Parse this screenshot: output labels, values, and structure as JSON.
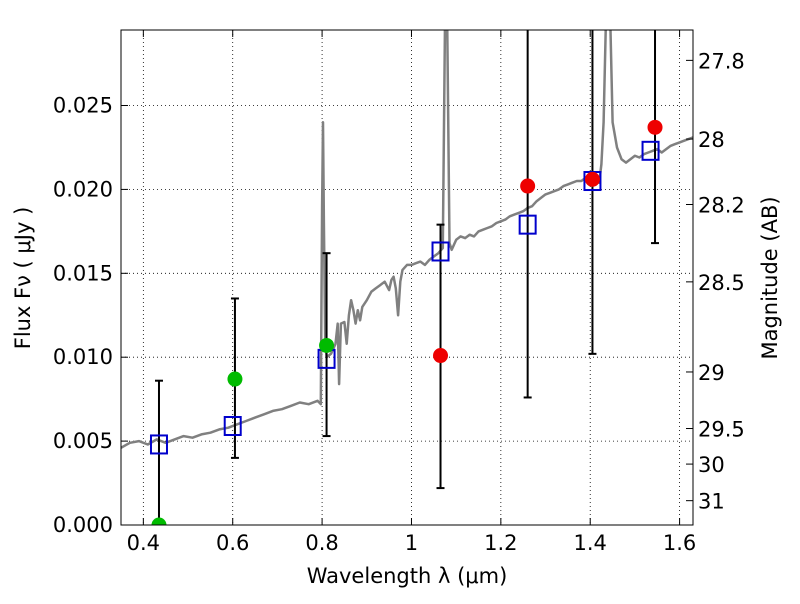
{
  "chart_data": {
    "type": "scatter",
    "title": "",
    "xlabel": "Wavelength  λ (μm)",
    "ylabel": "Flux  Fν  ( μJy )",
    "y2label": "Magnitude (AB)",
    "xlim": [
      0.35,
      1.63
    ],
    "ylim": [
      0.0,
      0.0295
    ],
    "grid": true,
    "x_ticks": [
      {
        "value": 0.4,
        "label": "0.4"
      },
      {
        "value": 0.6,
        "label": "0.6"
      },
      {
        "value": 0.8,
        "label": "0.8"
      },
      {
        "value": 1.0,
        "label": "1"
      },
      {
        "value": 1.2,
        "label": "1.2"
      },
      {
        "value": 1.4,
        "label": "1.4"
      },
      {
        "value": 1.6,
        "label": "1.6"
      }
    ],
    "y_ticks": [
      {
        "value": 0.0,
        "label": "0.000"
      },
      {
        "value": 0.005,
        "label": "0.005"
      },
      {
        "value": 0.01,
        "label": "0.010"
      },
      {
        "value": 0.015,
        "label": "0.015"
      },
      {
        "value": 0.02,
        "label": "0.020"
      },
      {
        "value": 0.025,
        "label": "0.025"
      }
    ],
    "y2_ticks": [
      {
        "flux": 0.02769,
        "label": "27.8"
      },
      {
        "flux": 0.023,
        "label": "28"
      },
      {
        "flux": 0.0191,
        "label": "28.2"
      },
      {
        "flux": 0.01449,
        "label": "28.5"
      },
      {
        "flux": 0.00912,
        "label": "29"
      },
      {
        "flux": 0.00575,
        "label": "29.5"
      },
      {
        "flux": 0.00363,
        "label": "30"
      },
      {
        "flux": 0.00145,
        "label": "31"
      }
    ],
    "colors": {
      "model": "#808080",
      "model_photometry": "#0000cc",
      "detection": "#00bb00",
      "measurement": "#ee0000",
      "errorbar": "#000000"
    },
    "series": [
      {
        "kind": "line",
        "color_key": "model",
        "points": [
          [
            0.35,
            0.0046
          ],
          [
            0.37,
            0.0049
          ],
          [
            0.39,
            0.005
          ],
          [
            0.41,
            0.0048
          ],
          [
            0.43,
            0.0051
          ],
          [
            0.45,
            0.0049
          ],
          [
            0.47,
            0.0051
          ],
          [
            0.49,
            0.0053
          ],
          [
            0.51,
            0.0052
          ],
          [
            0.53,
            0.0054
          ],
          [
            0.55,
            0.0055
          ],
          [
            0.57,
            0.0057
          ],
          [
            0.59,
            0.0058
          ],
          [
            0.61,
            0.006
          ],
          [
            0.63,
            0.0062
          ],
          [
            0.65,
            0.0064
          ],
          [
            0.67,
            0.0066
          ],
          [
            0.69,
            0.0068
          ],
          [
            0.71,
            0.0069
          ],
          [
            0.73,
            0.0071
          ],
          [
            0.75,
            0.0073
          ],
          [
            0.77,
            0.0072
          ],
          [
            0.79,
            0.0074
          ],
          [
            0.797,
            0.0072
          ],
          [
            0.8,
            0.019
          ],
          [
            0.802,
            0.024
          ],
          [
            0.804,
            0.018
          ],
          [
            0.807,
            0.011
          ],
          [
            0.81,
            0.01
          ],
          [
            0.82,
            0.0102
          ],
          [
            0.83,
            0.0108
          ],
          [
            0.835,
            0.012
          ],
          [
            0.838,
            0.0084
          ],
          [
            0.842,
            0.012
          ],
          [
            0.85,
            0.0121
          ],
          [
            0.855,
            0.0108
          ],
          [
            0.86,
            0.0125
          ],
          [
            0.865,
            0.0134
          ],
          [
            0.87,
            0.0128
          ],
          [
            0.875,
            0.012
          ],
          [
            0.88,
            0.0128
          ],
          [
            0.885,
            0.0122
          ],
          [
            0.89,
            0.013
          ],
          [
            0.9,
            0.0134
          ],
          [
            0.91,
            0.0139
          ],
          [
            0.92,
            0.0141
          ],
          [
            0.93,
            0.0143
          ],
          [
            0.94,
            0.0145
          ],
          [
            0.95,
            0.014
          ],
          [
            0.955,
            0.0146
          ],
          [
            0.96,
            0.0148
          ],
          [
            0.965,
            0.0141
          ],
          [
            0.97,
            0.0125
          ],
          [
            0.975,
            0.0145
          ],
          [
            0.98,
            0.0152
          ],
          [
            0.99,
            0.0155
          ],
          [
            1.0,
            0.0155
          ],
          [
            1.01,
            0.0156
          ],
          [
            1.02,
            0.0157
          ],
          [
            1.03,
            0.0155
          ],
          [
            1.04,
            0.0158
          ],
          [
            1.05,
            0.016
          ],
          [
            1.06,
            0.0162
          ],
          [
            1.07,
            0.0165
          ],
          [
            1.075,
            0.03
          ],
          [
            1.08,
            0.03
          ],
          [
            1.085,
            0.0168
          ],
          [
            1.09,
            0.0164
          ],
          [
            1.1,
            0.017
          ],
          [
            1.11,
            0.0172
          ],
          [
            1.12,
            0.0171
          ],
          [
            1.13,
            0.0173
          ],
          [
            1.14,
            0.0172
          ],
          [
            1.15,
            0.0175
          ],
          [
            1.16,
            0.0176
          ],
          [
            1.17,
            0.0177
          ],
          [
            1.18,
            0.0178
          ],
          [
            1.19,
            0.018
          ],
          [
            1.2,
            0.0181
          ],
          [
            1.21,
            0.0182
          ],
          [
            1.22,
            0.0184
          ],
          [
            1.23,
            0.0185
          ],
          [
            1.24,
            0.0186
          ],
          [
            1.25,
            0.0187
          ],
          [
            1.26,
            0.0189
          ],
          [
            1.27,
            0.019
          ],
          [
            1.28,
            0.0193
          ],
          [
            1.29,
            0.0195
          ],
          [
            1.3,
            0.0197
          ],
          [
            1.31,
            0.0198
          ],
          [
            1.32,
            0.0199
          ],
          [
            1.33,
            0.02
          ],
          [
            1.34,
            0.0202
          ],
          [
            1.35,
            0.0203
          ],
          [
            1.36,
            0.0204
          ],
          [
            1.37,
            0.0205
          ],
          [
            1.38,
            0.0205
          ],
          [
            1.39,
            0.0207
          ],
          [
            1.4,
            0.0206
          ],
          [
            1.41,
            0.0206
          ],
          [
            1.42,
            0.0204
          ],
          [
            1.425,
            0.0215
          ],
          [
            1.43,
            0.024
          ],
          [
            1.435,
            0.03
          ],
          [
            1.445,
            0.03
          ],
          [
            1.45,
            0.024
          ],
          [
            1.46,
            0.0225
          ],
          [
            1.47,
            0.0218
          ],
          [
            1.48,
            0.0216
          ],
          [
            1.49,
            0.0218
          ],
          [
            1.5,
            0.022
          ],
          [
            1.51,
            0.0219
          ],
          [
            1.52,
            0.0221
          ],
          [
            1.53,
            0.0222
          ],
          [
            1.54,
            0.0223
          ],
          [
            1.55,
            0.0224
          ],
          [
            1.56,
            0.0222
          ],
          [
            1.57,
            0.0224
          ],
          [
            1.58,
            0.0226
          ],
          [
            1.59,
            0.0227
          ],
          [
            1.6,
            0.0228
          ],
          [
            1.61,
            0.0229
          ],
          [
            1.62,
            0.023
          ],
          [
            1.63,
            0.0231
          ]
        ]
      },
      {
        "kind": "square",
        "color_key": "model_photometry",
        "points": [
          [
            0.435,
            0.0048
          ],
          [
            0.6,
            0.0059
          ],
          [
            0.81,
            0.0099
          ],
          [
            1.065,
            0.0163
          ],
          [
            1.26,
            0.0179
          ],
          [
            1.405,
            0.0205
          ],
          [
            1.535,
            0.0223
          ]
        ]
      },
      {
        "kind": "circle",
        "color_key": "detection",
        "points": [
          [
            0.435,
            0.0
          ],
          [
            0.605,
            0.0087
          ],
          [
            0.81,
            0.0107
          ]
        ]
      },
      {
        "kind": "circle",
        "color_key": "measurement",
        "points": [
          [
            1.065,
            0.0101
          ],
          [
            1.26,
            0.0202
          ],
          [
            1.405,
            0.0206
          ],
          [
            1.545,
            0.0237
          ]
        ]
      },
      {
        "kind": "errorbar",
        "color_key": "errorbar",
        "bars": [
          {
            "x": 0.435,
            "ylo": 0.0,
            "yhi": 0.0086
          },
          {
            "x": 0.605,
            "ylo": 0.004,
            "yhi": 0.0135
          },
          {
            "x": 0.81,
            "ylo": 0.0053,
            "yhi": 0.0162
          },
          {
            "x": 1.065,
            "ylo": 0.0022,
            "yhi": 0.0179
          },
          {
            "x": 1.26,
            "ylo": 0.0076,
            "yhi": 0.031
          },
          {
            "x": 1.405,
            "ylo": 0.0102,
            "yhi": 0.031
          },
          {
            "x": 1.545,
            "ylo": 0.0168,
            "yhi": 0.031
          }
        ]
      }
    ]
  }
}
